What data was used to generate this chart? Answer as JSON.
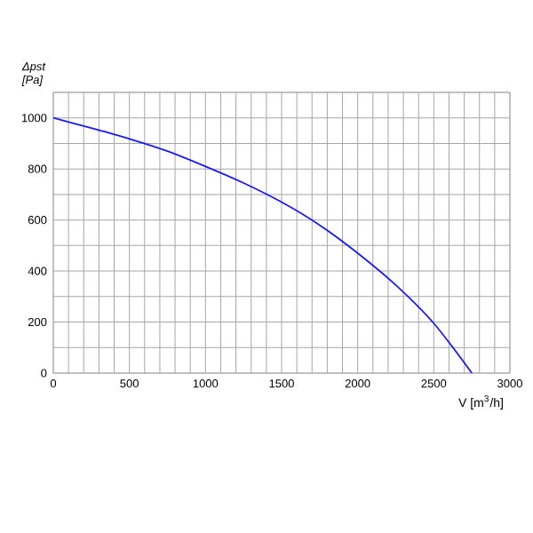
{
  "chart_data": {
    "type": "line",
    "xlabel": "V [m$^{3}$/h]",
    "ylabel": "*Δpst* *[Pa]*",
    "x": [
      0,
      250,
      500,
      750,
      1000,
      1250,
      1500,
      1750,
      2000,
      2250,
      2500,
      2750
    ],
    "series": [
      {
        "color": "#1a1aff",
        "values": [
          1000,
          960,
          918,
          870,
          810,
          745,
          670,
          580,
          470,
          345,
          195,
          0
        ]
      }
    ],
    "xlim": [
      0,
      3000
    ],
    "ylim": [
      0,
      1100
    ],
    "xticks": [
      0,
      {
        "value": 100,
        "label": null
      },
      {
        "value": 200,
        "label": null
      },
      {
        "value": 300,
        "label": null
      },
      {
        "value": 400,
        "label": null
      },
      500,
      {
        "value": 600,
        "label": null
      },
      {
        "value": 700,
        "label": null
      },
      {
        "value": 800,
        "label": null
      },
      {
        "value": 900,
        "label": null
      },
      1000,
      {
        "value": 1100,
        "label": null
      },
      {
        "value": 1200,
        "label": null
      },
      {
        "value": 1300,
        "label": null
      },
      {
        "value": 1400,
        "label": null
      },
      1500,
      {
        "value": 1600,
        "label": null
      },
      {
        "value": 1700,
        "label": null
      },
      {
        "value": 1800,
        "label": null
      },
      {
        "value": 1900,
        "label": null
      },
      2000,
      {
        "value": 2100,
        "label": null
      },
      {
        "value": 2200,
        "label": null
      },
      {
        "value": 2300,
        "label": null
      },
      {
        "value": 2400,
        "label": null
      },
      2500,
      {
        "value": 2600,
        "label": null
      },
      {
        "value": 2700,
        "label": null
      },
      {
        "value": 2800,
        "label": null
      },
      {
        "value": 2900,
        "label": null
      },
      3000
    ],
    "yticks": [
      0,
      {
        "value": 100,
        "label": null
      },
      200,
      {
        "value": 300,
        "label": null
      },
      400,
      {
        "value": 500,
        "label": null
      },
      600,
      {
        "value": 700,
        "label": null
      },
      800,
      {
        "value": 900,
        "label": null
      },
      1000,
      {
        "value": 1100,
        "label": null
      }
    ],
    "grid": true,
    "marker": "none",
    "line_style": "solid"
  }
}
